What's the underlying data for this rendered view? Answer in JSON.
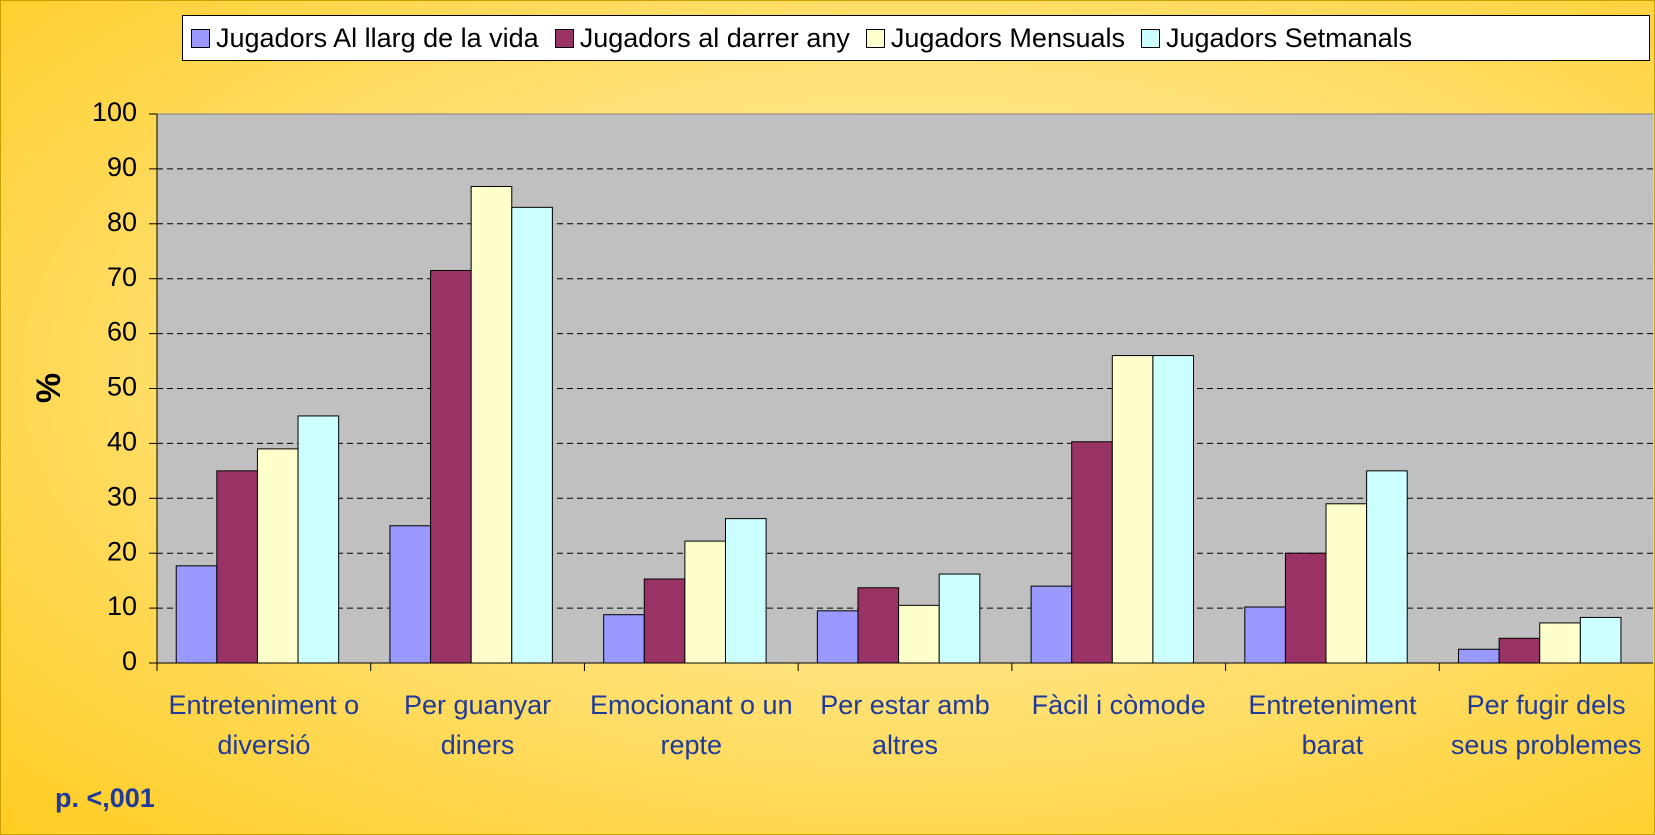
{
  "chart_data": {
    "type": "bar",
    "ylabel": "%",
    "annotation": "p. <,001",
    "categories": [
      "Entreteniment o diversió",
      "Per guanyar diners",
      "Emocionant o un repte",
      "Per estar amb altres",
      "Fàcil i còmode",
      "Entreteniment barat",
      "Per fugir dels seus problemes"
    ],
    "series": [
      {
        "name": "Jugadors Al llarg de la vida",
        "color": "#9999ff",
        "values": [
          17.7,
          25,
          8.8,
          9.5,
          14,
          10.2,
          2.5
        ]
      },
      {
        "name": "Jugadors al darrer any",
        "color": "#993366",
        "values": [
          35,
          71.5,
          15.3,
          13.7,
          40.3,
          20,
          4.5
        ]
      },
      {
        "name": "Jugadors Mensuals",
        "color": "#ffffcc",
        "values": [
          39,
          86.8,
          22.2,
          10.5,
          56,
          29,
          7.3
        ]
      },
      {
        "name": "Jugadors Setmanals",
        "color": "#ccffff",
        "values": [
          45,
          83,
          26.3,
          16.2,
          56,
          35,
          8.3
        ]
      }
    ],
    "ylim": [
      0,
      100
    ],
    "yticks": [
      0,
      10,
      20,
      30,
      40,
      50,
      60,
      70,
      80,
      90,
      100
    ],
    "grid": true,
    "legend": "top"
  }
}
